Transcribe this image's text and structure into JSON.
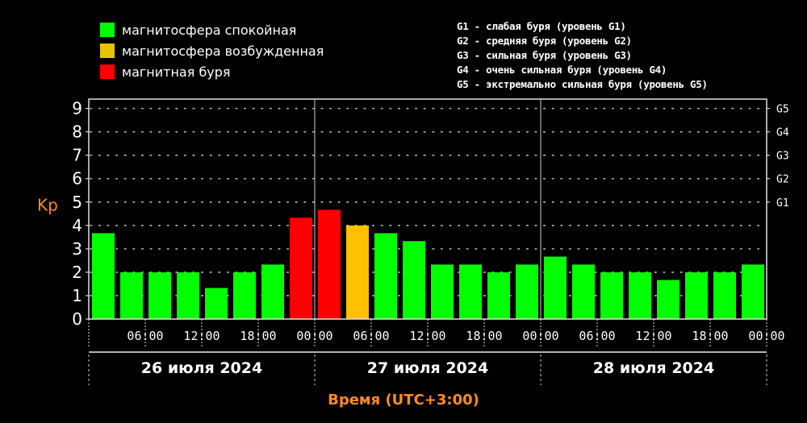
{
  "legend": [
    {
      "label": "магнитосфера спокойная",
      "color": "#00ff00"
    },
    {
      "label": "магнитосфера возбужденная",
      "color": "#e6c400"
    },
    {
      "label": "магнитная буря",
      "color": "#ff0000"
    }
  ],
  "storm_levels": [
    "G1 - слабая буря (уровень G1)",
    "G2 - средняя буря (уровень G2)",
    "G3 - сильная буря (уровень G3)",
    "G4 - очень сильная буря (уровень G4)",
    "G5 - экстремально сильная буря (уровень G5)"
  ],
  "xlabel": "Время (UTC+3:00)",
  "chart_data": {
    "type": "bar",
    "ylabel": "Kp",
    "ylim": [
      0,
      9
    ],
    "yticks": [
      "0",
      "1",
      "2",
      "3",
      "4",
      "5",
      "6",
      "7",
      "8",
      "9"
    ],
    "right_ticks": [
      {
        "label": "G1",
        "value": 5
      },
      {
        "label": "G2",
        "value": 6
      },
      {
        "label": "G3",
        "value": 7
      },
      {
        "label": "G4",
        "value": 8
      },
      {
        "label": "G5",
        "value": 9
      }
    ],
    "time_ticks": [
      "06:00",
      "12:00",
      "18:00",
      "00:00",
      "06:00",
      "12:00",
      "18:00",
      "00:00",
      "06:00",
      "12:00",
      "18:00",
      "00:00"
    ],
    "days": [
      "26 июля 2024",
      "27 июля 2024",
      "28 июля 2024"
    ],
    "grid": "dotted",
    "values": [
      3.67,
      2,
      2,
      2,
      1.33,
      2,
      2.33,
      4.33,
      4.67,
      4,
      3.67,
      3.33,
      2.33,
      2.33,
      2,
      2.33,
      2.67,
      2.33,
      2,
      2,
      1.67,
      2,
      2,
      2.33
    ],
    "colors": [
      "#00ff00",
      "#00ff00",
      "#00ff00",
      "#00ff00",
      "#00ff00",
      "#00ff00",
      "#00ff00",
      "#ff0000",
      "#ff0000",
      "#ffc000",
      "#00ff00",
      "#00ff00",
      "#00ff00",
      "#00ff00",
      "#00ff00",
      "#00ff00",
      "#00ff00",
      "#00ff00",
      "#00ff00",
      "#00ff00",
      "#00ff00",
      "#00ff00",
      "#00ff00",
      "#00ff00"
    ]
  }
}
